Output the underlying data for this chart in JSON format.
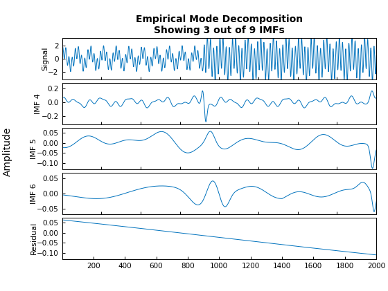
{
  "title_line1": "Empirical Mode Decomposition",
  "title_line2": "Showing 3 out of 9 IMFs",
  "xlim": [
    1,
    2000
  ],
  "xticks": [
    200,
    400,
    600,
    800,
    1000,
    1200,
    1400,
    1600,
    1800,
    2000
  ],
  "signal_ylim": [
    -3.2,
    3.2
  ],
  "signal_yticks": [
    -2,
    0,
    2
  ],
  "imf4_ylim": [
    -0.32,
    0.28
  ],
  "imf4_yticks": [
    -0.2,
    0,
    0.2
  ],
  "imf5_ylim": [
    -0.13,
    0.075
  ],
  "imf5_yticks": [
    -0.1,
    -0.05,
    0,
    0.05
  ],
  "imf6_ylim": [
    -0.068,
    0.068
  ],
  "imf6_yticks": [
    -0.05,
    0,
    0.05
  ],
  "residual_ylim": [
    -0.13,
    0.075
  ],
  "residual_yticks": [
    -0.1,
    -0.05,
    0,
    0.05
  ],
  "line_color": "#0072BD",
  "background_color": "#ffffff",
  "ylabel_overall": "Amplitude",
  "panel_labels": [
    "Signal",
    "IMF 4",
    "IMF 5",
    "IMF 6",
    "Residual"
  ],
  "title_fontsize": 10,
  "label_fontsize": 8,
  "tick_fontsize": 7.5
}
